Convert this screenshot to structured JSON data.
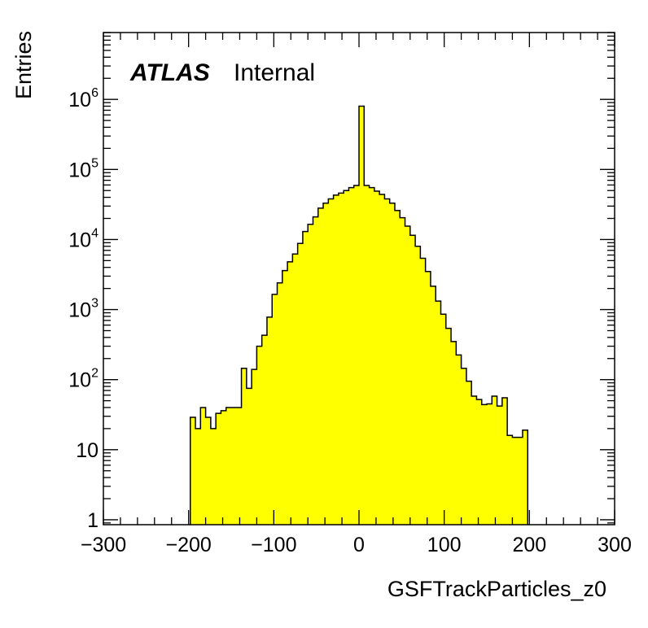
{
  "chart_data": {
    "type": "bar",
    "xlabel": "GSFTrackParticles_z0",
    "ylabel": "Entries",
    "experiment_label": "ATLAS",
    "status_label": "Internal",
    "y_scale": "log",
    "xlim": [
      -300,
      300
    ],
    "ylim": [
      0.85,
      9000000
    ],
    "bin_width": 6,
    "fill_color": "#ffff00",
    "line_color": "#000000",
    "grid": false,
    "x_tick_labels": [
      "−300",
      "−200",
      "−100",
      "0",
      "100",
      "200",
      "300"
    ],
    "x_ticks": [
      -300,
      -200,
      -100,
      0,
      100,
      200,
      300
    ],
    "y_tick_labels": [
      {
        "value": 1,
        "base": "1",
        "exp": ""
      },
      {
        "value": 10,
        "base": "10",
        "exp": ""
      },
      {
        "value": 100,
        "base": "10",
        "exp": "2"
      },
      {
        "value": 1000,
        "base": "10",
        "exp": "3"
      },
      {
        "value": 10000,
        "base": "10",
        "exp": "4"
      },
      {
        "value": 100000,
        "base": "10",
        "exp": "5"
      },
      {
        "value": 1000000,
        "base": "10",
        "exp": "6"
      }
    ],
    "bins": [
      {
        "x0": -198,
        "x1": -192,
        "y": 29
      },
      {
        "x0": -192,
        "x1": -186,
        "y": 20
      },
      {
        "x0": -186,
        "x1": -180,
        "y": 40
      },
      {
        "x0": -180,
        "x1": -174,
        "y": 29
      },
      {
        "x0": -174,
        "x1": -168,
        "y": 20
      },
      {
        "x0": -168,
        "x1": -162,
        "y": 33
      },
      {
        "x0": -162,
        "x1": -156,
        "y": 36
      },
      {
        "x0": -156,
        "x1": -150,
        "y": 40
      },
      {
        "x0": -150,
        "x1": -144,
        "y": 40
      },
      {
        "x0": -144,
        "x1": -138,
        "y": 40
      },
      {
        "x0": -138,
        "x1": -132,
        "y": 145
      },
      {
        "x0": -132,
        "x1": -126,
        "y": 75
      },
      {
        "x0": -126,
        "x1": -120,
        "y": 140
      },
      {
        "x0": -120,
        "x1": -114,
        "y": 300
      },
      {
        "x0": -114,
        "x1": -108,
        "y": 430
      },
      {
        "x0": -108,
        "x1": -102,
        "y": 780
      },
      {
        "x0": -102,
        "x1": -96,
        "y": 1650
      },
      {
        "x0": -96,
        "x1": -90,
        "y": 2400
      },
      {
        "x0": -90,
        "x1": -84,
        "y": 3600
      },
      {
        "x0": -84,
        "x1": -78,
        "y": 4800
      },
      {
        "x0": -78,
        "x1": -72,
        "y": 6200
      },
      {
        "x0": -72,
        "x1": -66,
        "y": 8800
      },
      {
        "x0": -66,
        "x1": -60,
        "y": 13000
      },
      {
        "x0": -60,
        "x1": -54,
        "y": 16500
      },
      {
        "x0": -54,
        "x1": -48,
        "y": 21000
      },
      {
        "x0": -48,
        "x1": -42,
        "y": 28000
      },
      {
        "x0": -42,
        "x1": -36,
        "y": 33000
      },
      {
        "x0": -36,
        "x1": -30,
        "y": 38000
      },
      {
        "x0": -30,
        "x1": -24,
        "y": 43000
      },
      {
        "x0": -24,
        "x1": -18,
        "y": 46000
      },
      {
        "x0": -18,
        "x1": -12,
        "y": 50000
      },
      {
        "x0": -12,
        "x1": -6,
        "y": 55000
      },
      {
        "x0": -6,
        "x1": 0,
        "y": 59000
      },
      {
        "x0": 0,
        "x1": 6,
        "y": 800000
      },
      {
        "x0": 6,
        "x1": 12,
        "y": 59000
      },
      {
        "x0": 12,
        "x1": 18,
        "y": 55000
      },
      {
        "x0": 18,
        "x1": 24,
        "y": 49000
      },
      {
        "x0": 24,
        "x1": 30,
        "y": 44000
      },
      {
        "x0": 30,
        "x1": 36,
        "y": 38000
      },
      {
        "x0": 36,
        "x1": 42,
        "y": 33000
      },
      {
        "x0": 42,
        "x1": 48,
        "y": 26000
      },
      {
        "x0": 48,
        "x1": 54,
        "y": 20500
      },
      {
        "x0": 54,
        "x1": 60,
        "y": 15500
      },
      {
        "x0": 60,
        "x1": 66,
        "y": 11500
      },
      {
        "x0": 66,
        "x1": 72,
        "y": 8000
      },
      {
        "x0": 72,
        "x1": 78,
        "y": 5400
      },
      {
        "x0": 78,
        "x1": 84,
        "y": 3500
      },
      {
        "x0": 84,
        "x1": 90,
        "y": 2150
      },
      {
        "x0": 90,
        "x1": 96,
        "y": 1320
      },
      {
        "x0": 96,
        "x1": 102,
        "y": 860
      },
      {
        "x0": 102,
        "x1": 108,
        "y": 540
      },
      {
        "x0": 108,
        "x1": 114,
        "y": 350
      },
      {
        "x0": 114,
        "x1": 120,
        "y": 225
      },
      {
        "x0": 120,
        "x1": 126,
        "y": 145
      },
      {
        "x0": 126,
        "x1": 132,
        "y": 95
      },
      {
        "x0": 132,
        "x1": 138,
        "y": 58
      },
      {
        "x0": 138,
        "x1": 144,
        "y": 52
      },
      {
        "x0": 144,
        "x1": 150,
        "y": 44
      },
      {
        "x0": 150,
        "x1": 156,
        "y": 45
      },
      {
        "x0": 156,
        "x1": 162,
        "y": 58
      },
      {
        "x0": 162,
        "x1": 168,
        "y": 42
      },
      {
        "x0": 168,
        "x1": 174,
        "y": 55
      },
      {
        "x0": 174,
        "x1": 180,
        "y": 16
      },
      {
        "x0": 180,
        "x1": 186,
        "y": 15
      },
      {
        "x0": 186,
        "x1": 192,
        "y": 15
      },
      {
        "x0": 192,
        "x1": 198,
        "y": 19
      }
    ]
  }
}
